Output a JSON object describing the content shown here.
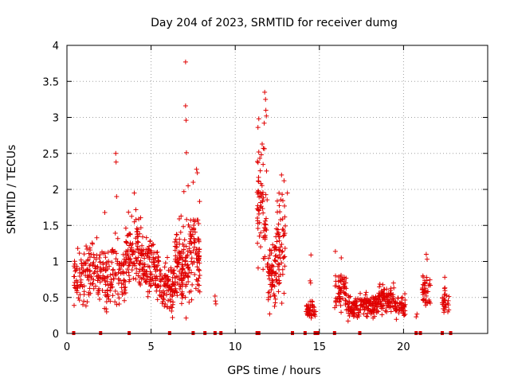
{
  "chart_data": {
    "type": "scatter",
    "title": "Day 204 of 2023, SRMTID for receiver dumg",
    "xlabel": "GPS time / hours",
    "ylabel": "SRMTID / TECUs",
    "xlim": [
      0,
      25
    ],
    "ylim": [
      0,
      4
    ],
    "x_ticks": [
      0,
      5,
      10,
      15,
      20
    ],
    "x_tick_labels": [
      "0",
      "5",
      "10",
      "15",
      "20"
    ],
    "y_ticks": [
      0,
      0.5,
      1,
      1.5,
      2,
      2.5,
      3,
      3.5,
      4
    ],
    "y_tick_labels": [
      "0",
      "0.5",
      "1",
      "1.5",
      "2",
      "2.5",
      "3",
      "3.5",
      "4"
    ],
    "grid": true,
    "marker": "+",
    "color": "#e00000",
    "clusters": [
      {
        "x_start": 0.4,
        "x_end": 1.3,
        "y_low": 0.25,
        "y_high": 1.3,
        "count": 70
      },
      {
        "x_start": 1.3,
        "x_end": 2.2,
        "y_low": 0.3,
        "y_high": 1.4,
        "count": 70
      },
      {
        "x_start": 2.2,
        "x_end": 3.5,
        "y_low": 0.1,
        "y_high": 1.5,
        "count": 110
      },
      {
        "x_start": 3.5,
        "x_end": 4.5,
        "y_low": 0.4,
        "y_high": 1.9,
        "count": 110
      },
      {
        "x_start": 4.5,
        "x_end": 5.5,
        "y_low": 0.3,
        "y_high": 1.5,
        "count": 100
      },
      {
        "x_start": 5.5,
        "x_end": 6.4,
        "y_low": 0.1,
        "y_high": 1.2,
        "count": 90
      },
      {
        "x_start": 6.4,
        "x_end": 7.2,
        "y_low": 0.1,
        "y_high": 1.8,
        "count": 110
      },
      {
        "x_start": 7.2,
        "x_end": 7.9,
        "y_low": 0.2,
        "y_high": 2.0,
        "count": 90
      },
      {
        "x_start": 11.3,
        "x_end": 11.9,
        "y_low": 0.6,
        "y_high": 2.8,
        "count": 70
      },
      {
        "x_start": 11.9,
        "x_end": 12.4,
        "y_low": 0.05,
        "y_high": 1.6,
        "count": 60
      },
      {
        "x_start": 12.4,
        "x_end": 13.0,
        "y_low": 0.3,
        "y_high": 2.2,
        "count": 70
      },
      {
        "x_start": 14.2,
        "x_end": 14.8,
        "y_low": 0.15,
        "y_high": 0.55,
        "count": 40
      },
      {
        "x_start": 15.9,
        "x_end": 16.6,
        "y_low": 0.2,
        "y_high": 1.0,
        "count": 60
      },
      {
        "x_start": 16.6,
        "x_end": 17.4,
        "y_low": 0.1,
        "y_high": 0.6,
        "count": 60
      },
      {
        "x_start": 17.4,
        "x_end": 18.5,
        "y_low": 0.15,
        "y_high": 0.6,
        "count": 90
      },
      {
        "x_start": 18.5,
        "x_end": 19.5,
        "y_low": 0.2,
        "y_high": 0.75,
        "count": 90
      },
      {
        "x_start": 19.5,
        "x_end": 20.1,
        "y_low": 0.15,
        "y_high": 0.6,
        "count": 50
      },
      {
        "x_start": 21.1,
        "x_end": 21.6,
        "y_low": 0.3,
        "y_high": 0.9,
        "count": 40
      },
      {
        "x_start": 22.3,
        "x_end": 22.7,
        "y_low": 0.2,
        "y_high": 0.7,
        "count": 30
      }
    ],
    "outliers": [
      {
        "x": 7.05,
        "y": 3.77
      },
      {
        "x": 7.05,
        "y": 3.16
      },
      {
        "x": 7.08,
        "y": 2.96
      },
      {
        "x": 7.1,
        "y": 2.51
      },
      {
        "x": 7.2,
        "y": 2.05
      },
      {
        "x": 7.5,
        "y": 2.1
      },
      {
        "x": 7.7,
        "y": 2.28
      },
      {
        "x": 7.75,
        "y": 2.23
      },
      {
        "x": 6.95,
        "y": 1.97
      },
      {
        "x": 2.9,
        "y": 2.5
      },
      {
        "x": 2.92,
        "y": 2.38
      },
      {
        "x": 2.95,
        "y": 1.9
      },
      {
        "x": 4.0,
        "y": 1.95
      },
      {
        "x": 2.25,
        "y": 1.68
      },
      {
        "x": 11.75,
        "y": 3.35
      },
      {
        "x": 11.8,
        "y": 3.25
      },
      {
        "x": 11.82,
        "y": 3.1
      },
      {
        "x": 11.85,
        "y": 3.02
      },
      {
        "x": 11.72,
        "y": 2.92
      },
      {
        "x": 11.4,
        "y": 2.98
      },
      {
        "x": 11.35,
        "y": 2.86
      },
      {
        "x": 11.6,
        "y": 2.63
      },
      {
        "x": 12.75,
        "y": 2.2
      },
      {
        "x": 12.9,
        "y": 2.12
      },
      {
        "x": 13.1,
        "y": 1.95
      },
      {
        "x": 14.5,
        "y": 1.09
      },
      {
        "x": 14.45,
        "y": 0.73
      },
      {
        "x": 14.48,
        "y": 0.7
      },
      {
        "x": 16.3,
        "y": 1.05
      },
      {
        "x": 15.95,
        "y": 1.14
      },
      {
        "x": 21.35,
        "y": 1.1
      },
      {
        "x": 21.4,
        "y": 1.03
      },
      {
        "x": 20.8,
        "y": 0.27
      },
      {
        "x": 20.75,
        "y": 0.23
      },
      {
        "x": 22.45,
        "y": 0.78
      },
      {
        "x": 8.8,
        "y": 0.52
      },
      {
        "x": 8.82,
        "y": 0.45
      },
      {
        "x": 8.85,
        "y": 0.41
      }
    ],
    "zero_points": [
      0.4,
      2.0,
      3.7,
      6.1,
      7.5,
      8.2,
      8.8,
      9.15,
      11.3,
      11.4,
      13.4,
      14.15,
      14.75,
      14.9,
      15.9,
      17.4,
      20.75,
      21.0,
      22.3,
      22.8
    ]
  }
}
